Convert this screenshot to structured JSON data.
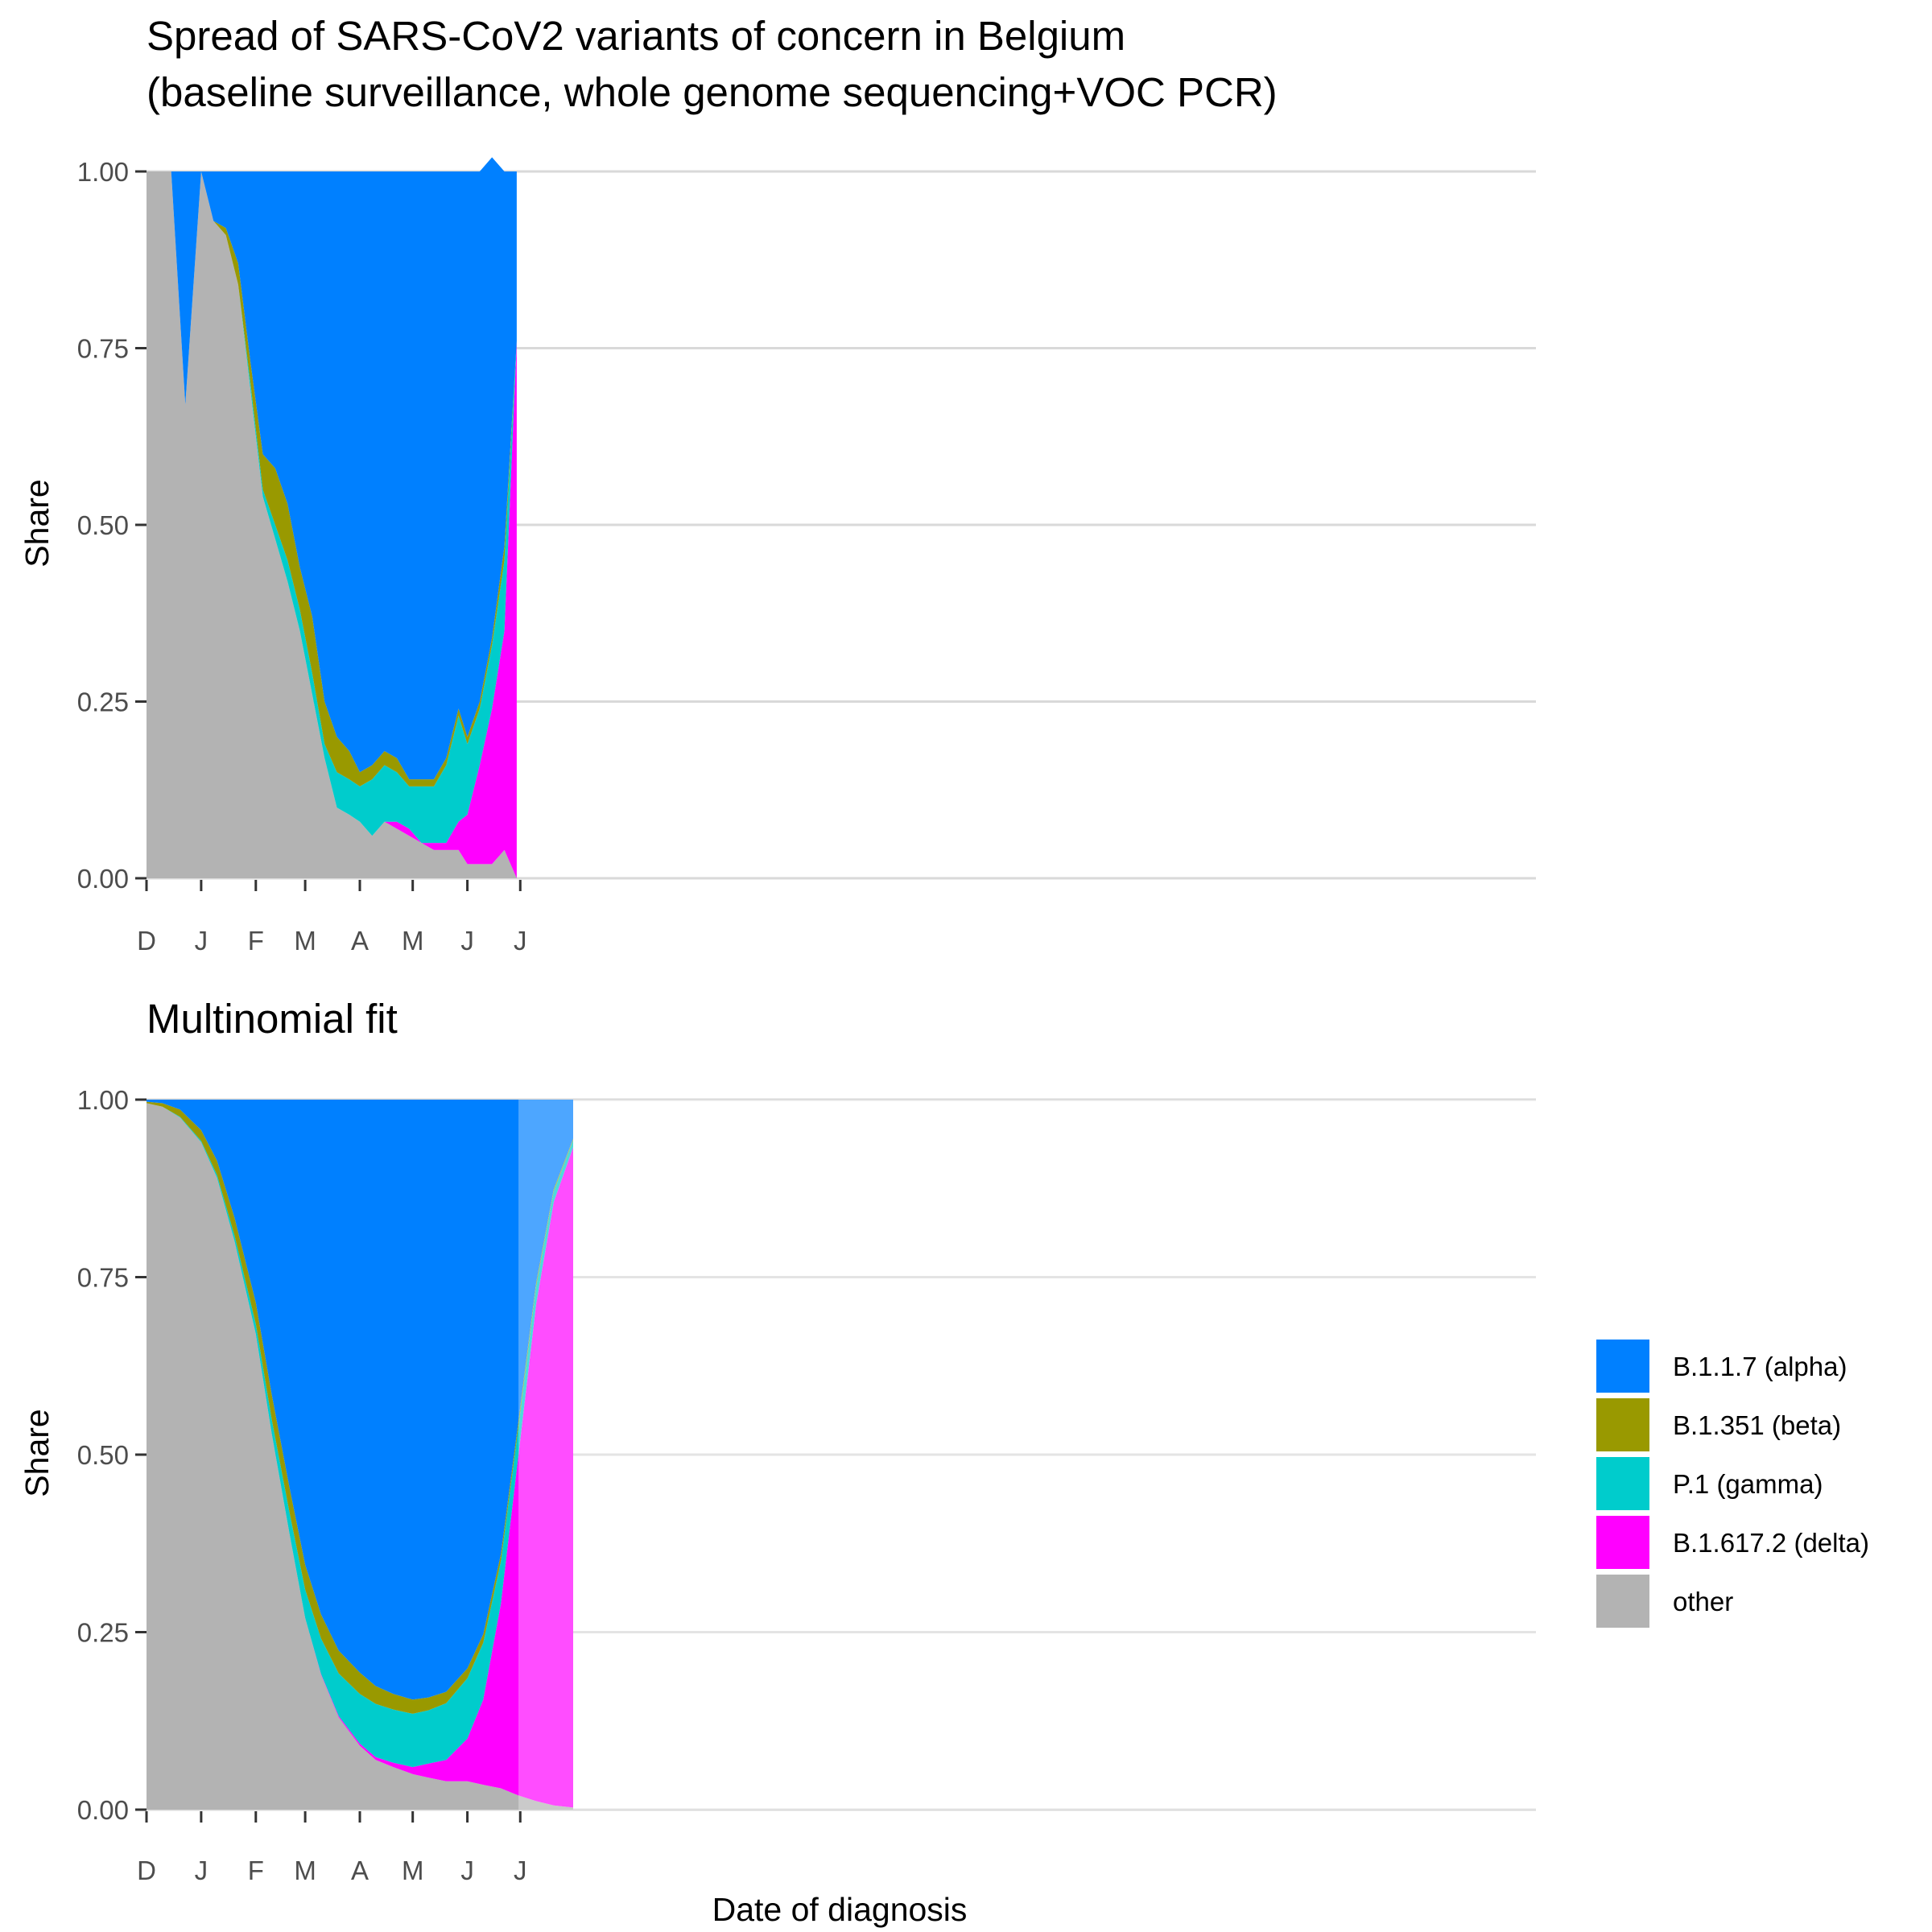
{
  "chart_data": [
    {
      "type": "area",
      "stacked": "proportional",
      "title": "Spread of SARS-CoV2 variants of concern in Belgium",
      "subtitle": "(baseline surveillance, whole genome sequencing+VOC PCR)",
      "xlabel": "",
      "ylabel": "Share",
      "ylim": [
        0,
        1
      ],
      "yticks": [
        "0.00",
        "0.25",
        "0.50",
        "0.75",
        "1.00"
      ],
      "xticks": [
        "D",
        "J",
        "F",
        "M",
        "A",
        "M",
        "J",
        "J"
      ],
      "grid": true,
      "x": [
        "2020-12-01",
        "2020-12-15",
        "2020-12-23",
        "2021-01-01",
        "2021-01-08",
        "2021-01-15",
        "2021-01-22",
        "2021-01-29",
        "2021-02-05",
        "2021-02-12",
        "2021-02-19",
        "2021-02-26",
        "2021-03-05",
        "2021-03-12",
        "2021-03-19",
        "2021-03-26",
        "2021-04-01",
        "2021-04-08",
        "2021-04-15",
        "2021-04-22",
        "2021-04-29",
        "2021-05-06",
        "2021-05-13",
        "2021-05-20",
        "2021-05-27",
        "2021-06-01",
        "2021-06-08",
        "2021-06-15",
        "2021-06-22",
        "2021-06-29"
      ],
      "series": [
        {
          "name": "other",
          "values": [
            1.0,
            1.0,
            0.67,
            1.0,
            0.93,
            0.91,
            0.84,
            0.69,
            0.54,
            0.48,
            0.42,
            0.35,
            0.26,
            0.17,
            0.1,
            0.09,
            0.08,
            0.06,
            0.08,
            0.07,
            0.06,
            0.05,
            0.04,
            0.04,
            0.04,
            0.02,
            0.02,
            0.02,
            0.04,
            0.0
          ]
        },
        {
          "name": "B.1.617.2 (delta)",
          "values": [
            0,
            0,
            0,
            0,
            0,
            0,
            0,
            0,
            0,
            0,
            0,
            0,
            0,
            0,
            0,
            0,
            0,
            0,
            0,
            0.01,
            0.01,
            0.0,
            0.01,
            0.01,
            0.04,
            0.07,
            0.14,
            0.22,
            0.31,
            0.76
          ]
        },
        {
          "name": "P.1 (gamma)",
          "values": [
            0,
            0,
            0,
            0,
            0,
            0,
            0,
            0.01,
            0.01,
            0.02,
            0.03,
            0.03,
            0.03,
            0.02,
            0.05,
            0.05,
            0.05,
            0.08,
            0.08,
            0.07,
            0.06,
            0.08,
            0.08,
            0.11,
            0.15,
            0.1,
            0.08,
            0.09,
            0.1,
            0.0
          ]
        },
        {
          "name": "B.1.351 (beta)",
          "values": [
            0,
            0,
            0,
            0,
            0,
            0.01,
            0.03,
            0.03,
            0.05,
            0.08,
            0.08,
            0.06,
            0.08,
            0.06,
            0.05,
            0.04,
            0.02,
            0.02,
            0.02,
            0.02,
            0.01,
            0.01,
            0.01,
            0.01,
            0.01,
            0.01,
            0.01,
            0.01,
            0.02,
            0.0
          ]
        },
        {
          "name": "B.1.1.7 (alpha)",
          "values": [
            0.0,
            0.0,
            0.33,
            0.0,
            0.07,
            0.08,
            0.13,
            0.27,
            0.4,
            0.42,
            0.47,
            0.56,
            0.63,
            0.75,
            0.8,
            0.82,
            0.85,
            0.84,
            0.82,
            0.83,
            0.86,
            0.86,
            0.86,
            0.83,
            0.76,
            0.8,
            0.75,
            0.68,
            0.53,
            0.24
          ]
        }
      ]
    },
    {
      "type": "area",
      "stacked": "proportional",
      "title": "Multinomial fit",
      "xlabel": "Date of diagnosis",
      "ylabel": "Share",
      "ylim": [
        0,
        1
      ],
      "yticks": [
        "0.00",
        "0.25",
        "0.50",
        "0.75",
        "1.00"
      ],
      "xticks": [
        "D",
        "J",
        "F",
        "M",
        "A",
        "M",
        "J",
        "J"
      ],
      "grid": true,
      "fit_end_date": "2021-06-30",
      "x": [
        "2020-12-01",
        "2020-12-10",
        "2020-12-20",
        "2021-01-01",
        "2021-01-10",
        "2021-01-20",
        "2021-02-01",
        "2021-02-10",
        "2021-02-20",
        "2021-03-01",
        "2021-03-10",
        "2021-03-20",
        "2021-04-01",
        "2021-04-10",
        "2021-04-20",
        "2021-05-01",
        "2021-05-10",
        "2021-05-20",
        "2021-06-01",
        "2021-06-10",
        "2021-06-20",
        "2021-06-30",
        "2021-07-10",
        "2021-07-20",
        "2021-07-31"
      ],
      "series": [
        {
          "name": "other",
          "values": [
            0.995,
            0.99,
            0.975,
            0.94,
            0.89,
            0.8,
            0.67,
            0.53,
            0.39,
            0.27,
            0.19,
            0.13,
            0.09,
            0.07,
            0.06,
            0.05,
            0.045,
            0.04,
            0.04,
            0.035,
            0.03,
            0.02,
            0.012,
            0.006,
            0.003
          ]
        },
        {
          "name": "B.1.617.2 (delta)",
          "values": [
            0,
            0,
            0,
            0,
            0,
            0,
            0,
            0,
            0,
            0,
            0.001,
            0.002,
            0.003,
            0.004,
            0.006,
            0.01,
            0.02,
            0.03,
            0.06,
            0.12,
            0.26,
            0.48,
            0.7,
            0.85,
            0.93
          ]
        },
        {
          "name": "P.1 (gamma)",
          "values": [
            0,
            0,
            0.001,
            0.002,
            0.004,
            0.008,
            0.014,
            0.02,
            0.03,
            0.04,
            0.05,
            0.06,
            0.07,
            0.075,
            0.075,
            0.075,
            0.075,
            0.08,
            0.085,
            0.08,
            0.06,
            0.04,
            0.025,
            0.015,
            0.01
          ]
        },
        {
          "name": "B.1.351 (beta)",
          "values": [
            0.002,
            0.005,
            0.01,
            0.015,
            0.02,
            0.025,
            0.03,
            0.035,
            0.035,
            0.035,
            0.034,
            0.032,
            0.03,
            0.025,
            0.022,
            0.02,
            0.018,
            0.016,
            0.014,
            0.012,
            0.01,
            0.008,
            0.005,
            0.003,
            0.002
          ]
        },
        {
          "name": "B.1.1.7 (alpha)",
          "values": [
            0.003,
            0.005,
            0.014,
            0.043,
            0.086,
            0.167,
            0.286,
            0.415,
            0.545,
            0.655,
            0.725,
            0.776,
            0.807,
            0.826,
            0.837,
            0.845,
            0.842,
            0.834,
            0.801,
            0.753,
            0.64,
            0.452,
            0.258,
            0.126,
            0.055
          ]
        }
      ]
    }
  ],
  "legend": {
    "items": [
      {
        "label": "B.1.1.7 (alpha)",
        "color": "#0080FF"
      },
      {
        "label": "B.1.351 (beta)",
        "color": "#999900"
      },
      {
        "label": "P.1 (gamma)",
        "color": "#00CCCC"
      },
      {
        "label": "B.1.617.2 (delta)",
        "color": "#FF00FF"
      },
      {
        "label": "other",
        "color": "#B3B3B3"
      }
    ],
    "placement": "right"
  },
  "colors": {
    "B.1.1.7 (alpha)": "#0080FF",
    "B.1.351 (beta)": "#999900",
    "P.1 (gamma)": "#00CCCC",
    "B.1.617.2 (delta)": "#FF00FF",
    "other": "#B3B3B3",
    "grid": "#D9D9D9",
    "tick_text": "#4D4D4D"
  }
}
